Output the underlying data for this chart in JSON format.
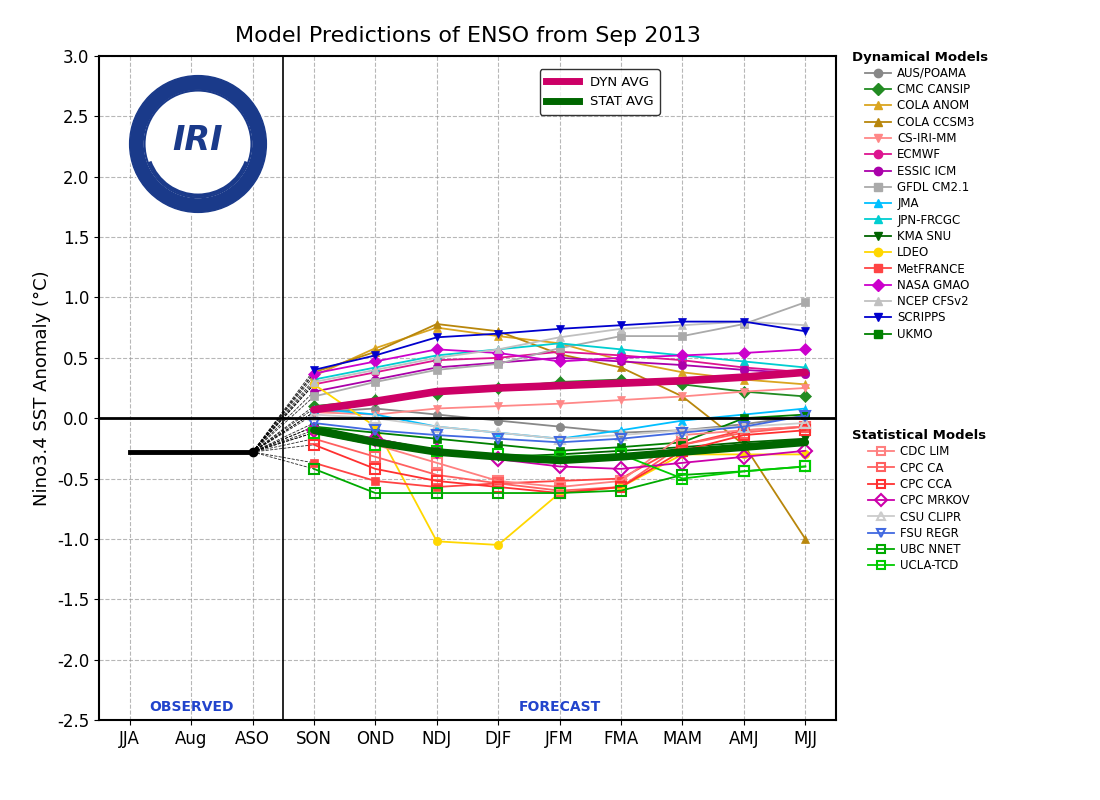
{
  "title": "Model Predictions of ENSO from Sep 2013",
  "ylabel": "Nino3.4 SST Anomaly (°C)",
  "xlabels": [
    "JJA",
    "Aug",
    "ASO",
    "SON",
    "OND",
    "NDJ",
    "DJF",
    "JFM",
    "FMA",
    "MAM",
    "AMJ",
    "MJJ"
  ],
  "ylim": [
    -2.5,
    3.0
  ],
  "yticks": [
    -2.5,
    -2.0,
    -1.5,
    -1.0,
    -0.5,
    0.0,
    0.5,
    1.0,
    1.5,
    2.0,
    2.5,
    3.0
  ],
  "obs_value": -0.28,
  "dyn_avg": [
    null,
    null,
    null,
    0.07,
    0.14,
    0.22,
    0.25,
    0.27,
    0.29,
    0.31,
    0.34,
    0.38
  ],
  "stat_avg": [
    null,
    null,
    null,
    -0.1,
    -0.2,
    -0.28,
    -0.32,
    -0.35,
    -0.32,
    -0.28,
    -0.24,
    -0.2
  ],
  "dynamical_models": {
    "AUS/POAMA": {
      "color": "#888888",
      "marker": "o",
      "values": [
        null,
        null,
        null,
        0.05,
        0.08,
        0.03,
        -0.02,
        -0.07,
        -0.12,
        -0.1,
        -0.05,
        0.02
      ]
    },
    "CMC CANSIP": {
      "color": "#228B22",
      "marker": "D",
      "values": [
        null,
        null,
        null,
        0.1,
        0.15,
        0.2,
        0.25,
        0.3,
        0.32,
        0.28,
        0.22,
        0.18
      ]
    },
    "COLA ANOM": {
      "color": "#DAA520",
      "marker": "^",
      "values": [
        null,
        null,
        null,
        0.35,
        0.58,
        0.75,
        0.68,
        0.62,
        0.48,
        0.38,
        0.32,
        0.28
      ]
    },
    "COLA CCSM3": {
      "color": "#B8860B",
      "marker": "^",
      "values": [
        null,
        null,
        null,
        0.38,
        0.55,
        0.78,
        0.72,
        0.53,
        0.42,
        0.18,
        -0.22,
        -1.0
      ]
    },
    "CS-IRI-MM": {
      "color": "#FF8888",
      "marker": "v",
      "values": [
        null,
        null,
        null,
        0.05,
        0.03,
        0.08,
        0.1,
        0.12,
        0.15,
        0.18,
        0.22,
        0.25
      ]
    },
    "ECMWF": {
      "color": "#DD1490",
      "marker": "o",
      "values": [
        null,
        null,
        null,
        0.28,
        0.38,
        0.48,
        0.5,
        0.55,
        0.52,
        0.48,
        0.42,
        0.38
      ]
    },
    "ESSIC ICM": {
      "color": "#AA00AA",
      "marker": "o",
      "values": [
        null,
        null,
        null,
        0.22,
        0.32,
        0.42,
        0.46,
        0.5,
        0.47,
        0.44,
        0.4,
        0.37
      ]
    },
    "GFDL CM2.1": {
      "color": "#AAAAAA",
      "marker": "s",
      "values": [
        null,
        null,
        null,
        0.18,
        0.3,
        0.4,
        0.45,
        0.58,
        0.68,
        0.68,
        0.78,
        0.96
      ]
    },
    "JMA": {
      "color": "#00BFFF",
      "marker": "^",
      "values": [
        null,
        null,
        null,
        0.08,
        0.03,
        -0.07,
        -0.12,
        -0.17,
        -0.1,
        -0.02,
        0.03,
        0.08
      ]
    },
    "JPN-FRCGC": {
      "color": "#00CED1",
      "marker": "^",
      "values": [
        null,
        null,
        null,
        0.32,
        0.42,
        0.52,
        0.57,
        0.62,
        0.57,
        0.52,
        0.47,
        0.42
      ]
    },
    "KMA SNU": {
      "color": "#006400",
      "marker": "v",
      "values": [
        null,
        null,
        null,
        -0.07,
        -0.17,
        -0.27,
        -0.32,
        -0.3,
        -0.27,
        -0.24,
        -0.2,
        -0.17
      ]
    },
    "LDEO": {
      "color": "#FFD700",
      "marker": "o",
      "values": [
        null,
        null,
        null,
        0.28,
        -0.07,
        -1.02,
        -1.05,
        -0.62,
        -0.57,
        -0.3,
        -0.3,
        -0.3
      ]
    },
    "MetFRANCE": {
      "color": "#FF4444",
      "marker": "s",
      "values": [
        null,
        null,
        null,
        -0.37,
        -0.52,
        -0.57,
        -0.54,
        -0.52,
        -0.5,
        -0.22,
        -0.1,
        -0.07
      ]
    },
    "NASA GMAO": {
      "color": "#CC00CC",
      "marker": "D",
      "values": [
        null,
        null,
        null,
        0.37,
        0.47,
        0.57,
        0.54,
        0.47,
        0.5,
        0.52,
        0.54,
        0.57
      ]
    },
    "NCEP CFSv2": {
      "color": "#C0C0C0",
      "marker": "^",
      "values": [
        null,
        null,
        null,
        0.3,
        0.4,
        0.5,
        0.57,
        0.67,
        0.74,
        0.77,
        0.8,
        0.77
      ]
    },
    "SCRIPPS": {
      "color": "#0000CD",
      "marker": "v",
      "values": [
        null,
        null,
        null,
        0.4,
        0.52,
        0.67,
        0.7,
        0.74,
        0.77,
        0.8,
        0.8,
        0.72
      ]
    },
    "UKMO": {
      "color": "#008000",
      "marker": "s",
      "values": [
        null,
        null,
        null,
        -0.07,
        -0.12,
        -0.17,
        -0.22,
        -0.27,
        -0.24,
        -0.2,
        0.0,
        0.03
      ]
    }
  },
  "statistical_models": {
    "CDC LIM": {
      "color": "#FF8080",
      "marker": "s",
      "values": [
        null,
        null,
        null,
        -0.12,
        -0.22,
        -0.37,
        -0.52,
        -0.57,
        -0.52,
        -0.14,
        -0.1,
        -0.07
      ]
    },
    "CPC CA": {
      "color": "#FF6060",
      "marker": "s",
      "values": [
        null,
        null,
        null,
        -0.17,
        -0.32,
        -0.47,
        -0.54,
        -0.6,
        -0.57,
        -0.22,
        -0.12,
        -0.07
      ]
    },
    "CPC CCA": {
      "color": "#FF3030",
      "marker": "s",
      "values": [
        null,
        null,
        null,
        -0.22,
        -0.42,
        -0.52,
        -0.57,
        -0.62,
        -0.57,
        -0.27,
        -0.14,
        -0.1
      ]
    },
    "CPC MRKOV": {
      "color": "#CC00AA",
      "marker": "D",
      "values": [
        null,
        null,
        null,
        -0.1,
        -0.17,
        -0.27,
        -0.34,
        -0.4,
        -0.42,
        -0.37,
        -0.32,
        -0.27
      ]
    },
    "CSU CLIPR": {
      "color": "#CCCCCC",
      "marker": "^",
      "values": [
        null,
        null,
        null,
        0.03,
        0.0,
        -0.07,
        -0.12,
        -0.17,
        -0.14,
        -0.1,
        -0.07,
        -0.04
      ]
    },
    "FSU REGR": {
      "color": "#4169E1",
      "marker": "v",
      "values": [
        null,
        null,
        null,
        -0.04,
        -0.1,
        -0.14,
        -0.17,
        -0.2,
        -0.17,
        -0.12,
        -0.07,
        0.02
      ]
    },
    "UBC NNET": {
      "color": "#00AA00",
      "marker": "s",
      "values": [
        null,
        null,
        null,
        -0.42,
        -0.62,
        -0.62,
        -0.62,
        -0.62,
        -0.6,
        -0.47,
        -0.44,
        -0.4
      ]
    },
    "UCLA-TCD": {
      "color": "#00CC00",
      "marker": "s",
      "values": [
        null,
        null,
        null,
        -0.12,
        -0.22,
        -0.27,
        -0.3,
        -0.32,
        -0.3,
        -0.5,
        -0.44,
        -0.4
      ]
    }
  },
  "logo_blue": "#1A3A8A",
  "observed_color": "#2244CC",
  "forecast_color": "#2244CC",
  "dyn_avg_color": "#CC0066",
  "stat_avg_color": "#006600"
}
